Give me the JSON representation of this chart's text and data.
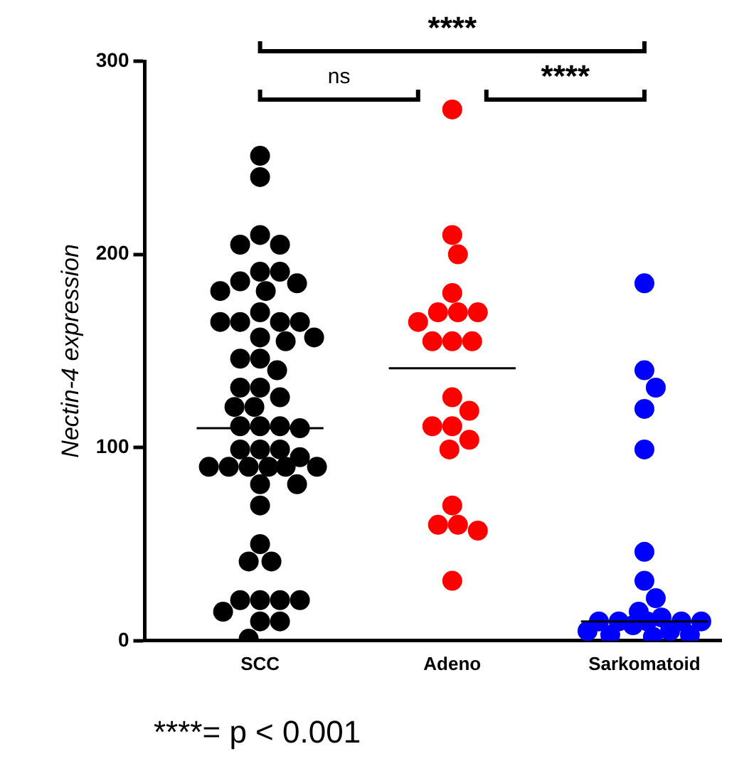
{
  "chart_data": {
    "type": "scatter",
    "ylabel": "Nectin-4 expression",
    "categories": [
      "SCC",
      "Adeno",
      "Sarkomatoid"
    ],
    "ylim": [
      0,
      300
    ],
    "yticks": [
      0,
      100,
      200,
      300
    ],
    "grid": false,
    "legend": false,
    "marker": "circle",
    "series": [
      {
        "color": "#000000",
        "x": [
          "SCC",
          "SCC",
          "SCC",
          "SCC",
          "SCC",
          "SCC",
          "SCC",
          "SCC",
          "SCC",
          "SCC",
          "SCC",
          "SCC",
          "SCC",
          "SCC",
          "SCC",
          "SCC",
          "SCC",
          "SCC",
          "SCC",
          "SCC",
          "SCC",
          "SCC",
          "SCC",
          "SCC",
          "SCC",
          "SCC",
          "SCC",
          "SCC",
          "SCC",
          "SCC",
          "SCC",
          "SCC",
          "SCC",
          "SCC",
          "SCC",
          "SCC",
          "SCC",
          "SCC",
          "SCC",
          "SCC",
          "SCC",
          "SCC",
          "SCC",
          "SCC",
          "SCC",
          "SCC",
          "SCC",
          "SCC",
          "SCC",
          "SCC",
          "SCC",
          "SCC",
          "SCC",
          "SCC",
          "SCC"
        ],
        "values": [
          251,
          240,
          210,
          205,
          205,
          191,
          191,
          186,
          181,
          181,
          165,
          165,
          165,
          165,
          157,
          157,
          146,
          146,
          140,
          131,
          131,
          126,
          121,
          121,
          111,
          111,
          111,
          99,
          99,
          99,
          90,
          90,
          90,
          90,
          90,
          90,
          81,
          81,
          70,
          50,
          41,
          41,
          21,
          21,
          21,
          21,
          15,
          10,
          10,
          1,
          155,
          185,
          170,
          110,
          95
        ]
      },
      {
        "color": "#ff0000",
        "x": [
          "Adeno",
          "Adeno",
          "Adeno",
          "Adeno",
          "Adeno",
          "Adeno",
          "Adeno",
          "Adeno",
          "Adeno",
          "Adeno",
          "Adeno",
          "Adeno",
          "Adeno",
          "Adeno",
          "Adeno",
          "Adeno",
          "Adeno",
          "Adeno",
          "Adeno",
          "Adeno",
          "Adeno",
          "Adeno"
        ],
        "values": [
          275,
          210,
          200,
          180,
          170,
          170,
          170,
          165,
          155,
          155,
          155,
          126,
          119,
          111,
          111,
          104,
          99,
          70,
          60,
          60,
          57,
          31
        ]
      },
      {
        "color": "#0000ff",
        "x": [
          "Sarkomatoid",
          "Sarkomatoid",
          "Sarkomatoid",
          "Sarkomatoid",
          "Sarkomatoid",
          "Sarkomatoid",
          "Sarkomatoid",
          "Sarkomatoid",
          "Sarkomatoid",
          "Sarkomatoid",
          "Sarkomatoid",
          "Sarkomatoid",
          "Sarkomatoid",
          "Sarkomatoid",
          "Sarkomatoid",
          "Sarkomatoid",
          "Sarkomatoid",
          "Sarkomatoid",
          "Sarkomatoid",
          "Sarkomatoid",
          "Sarkomatoid"
        ],
        "values": [
          185,
          140,
          131,
          120,
          99,
          46,
          31,
          22,
          15,
          12,
          10,
          10,
          10,
          10,
          10,
          8,
          5,
          5,
          3,
          3,
          2
        ]
      },
      {
        "type": "box",
        "color": "#000000",
        "boxes": [
          {
            "low": 110,
            "q1": 110,
            "median": 110,
            "q3": 110,
            "high": 110
          },
          {
            "low": 141,
            "q1": 141,
            "median": 141,
            "q3": 141,
            "high": 141
          },
          {
            "low": 10,
            "q1": 10,
            "median": 10,
            "q3": 10,
            "high": 10
          }
        ]
      }
    ],
    "annotations": [
      "****",
      "ns",
      "****",
      "****= p < 0.001"
    ]
  }
}
